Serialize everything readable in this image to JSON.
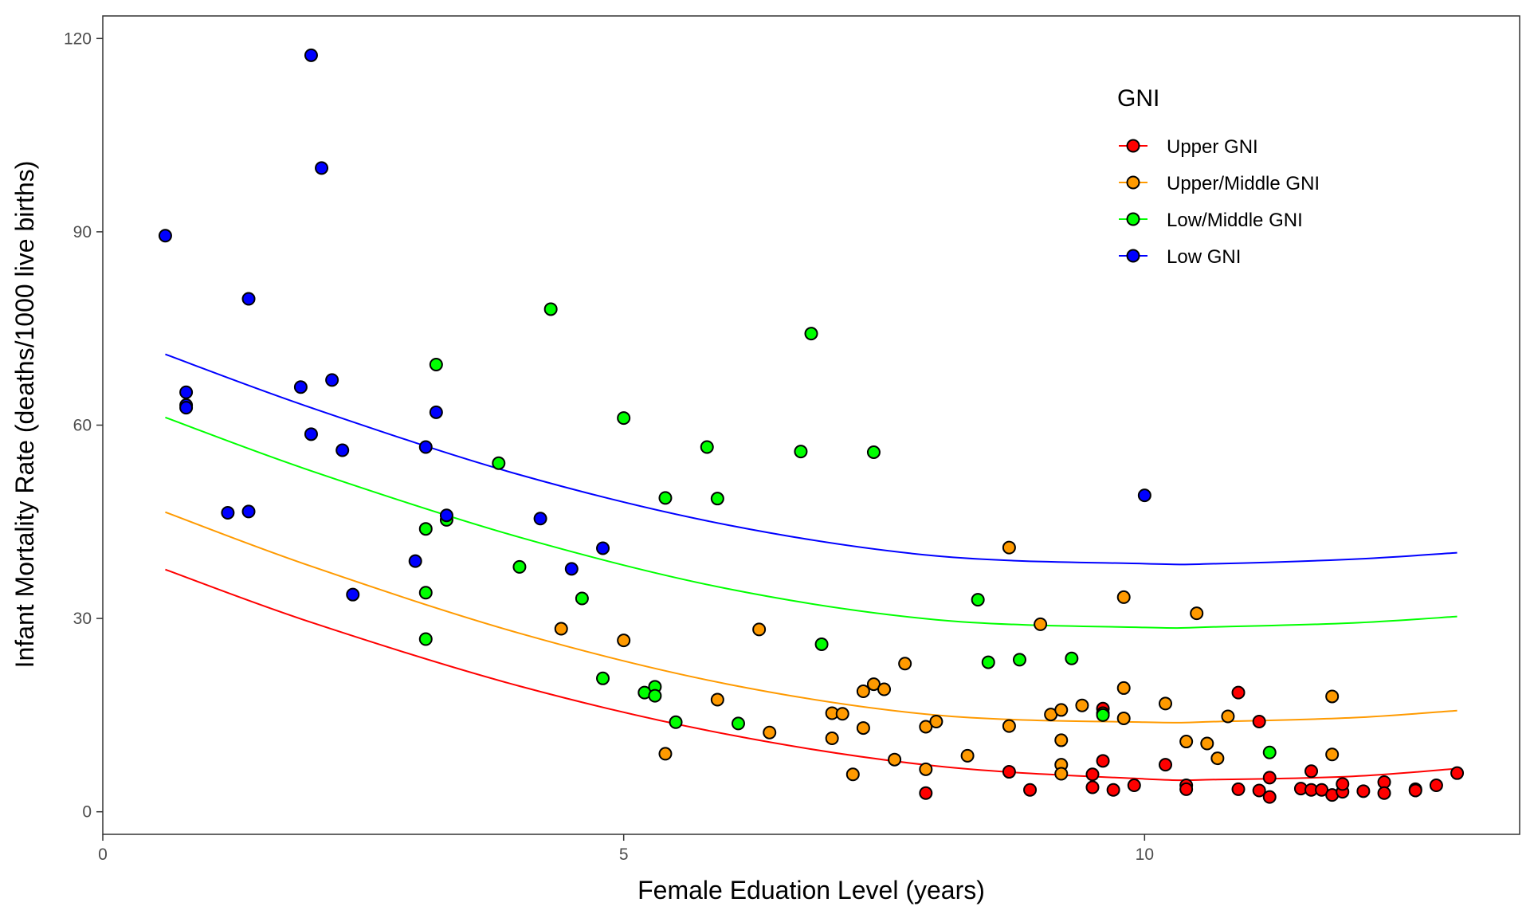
{
  "chart_data": {
    "type": "scatter",
    "xlabel": "Female Eduation Level (years)",
    "ylabel": "Infant Mortality Rate (deaths/1000 live births)",
    "xlim": [
      0,
      13.6
    ],
    "ylim": [
      -3.5,
      123.5
    ],
    "x_ticks": [
      0,
      5,
      10
    ],
    "y_ticks": [
      0,
      30,
      60,
      90,
      120
    ],
    "grid": false,
    "legend": {
      "title": "GNI",
      "placement": "top-right",
      "entries": [
        "Upper GNI",
        "Upper/Middle GNI",
        "Low/Middle GNI",
        "Low GNI"
      ]
    },
    "colors": {
      "Upper GNI": "#ff0000",
      "Upper/Middle GNI": "#ff9a00",
      "Low/Middle GNI": "#00ff00",
      "Low GNI": "#0000ff",
      "point_outline": "#000000"
    },
    "series": [
      {
        "name": "Upper GNI",
        "fit_curve": [
          [
            0.6,
            37.6
          ],
          [
            2.0,
            29.4
          ],
          [
            4.0,
            19.5
          ],
          [
            6.0,
            12.0
          ],
          [
            8.0,
            7.1
          ],
          [
            10.0,
            5.1
          ],
          [
            10.7,
            5.0
          ],
          [
            12.0,
            5.5
          ],
          [
            13.0,
            6.7
          ]
        ],
        "points": [
          [
            8.7,
            6.2
          ],
          [
            9.5,
            5.8
          ],
          [
            9.6,
            7.9
          ],
          [
            9.5,
            3.8
          ],
          [
            9.7,
            3.4
          ],
          [
            9.6,
            16.0
          ],
          [
            9.9,
            4.1
          ],
          [
            10.2,
            7.3
          ],
          [
            10.4,
            4.1
          ],
          [
            10.4,
            3.5
          ],
          [
            10.9,
            3.5
          ],
          [
            10.9,
            18.5
          ],
          [
            11.1,
            14.0
          ],
          [
            11.1,
            3.3
          ],
          [
            11.2,
            5.3
          ],
          [
            11.2,
            2.3
          ],
          [
            11.5,
            3.6
          ],
          [
            11.6,
            6.3
          ],
          [
            11.6,
            3.4
          ],
          [
            11.7,
            3.4
          ],
          [
            11.8,
            2.6
          ],
          [
            11.9,
            3.1
          ],
          [
            11.9,
            4.3
          ],
          [
            12.1,
            3.2
          ],
          [
            12.3,
            4.6
          ],
          [
            12.3,
            2.9
          ],
          [
            12.6,
            3.5
          ],
          [
            12.6,
            3.3
          ],
          [
            12.8,
            4.1
          ],
          [
            13.0,
            6.0
          ],
          [
            7.9,
            2.9
          ],
          [
            8.9,
            3.4
          ]
        ]
      },
      {
        "name": "Upper/Middle GNI",
        "fit_curve": [
          [
            0.6,
            46.5
          ],
          [
            2.0,
            38.1
          ],
          [
            4.0,
            27.7
          ],
          [
            6.0,
            19.8
          ],
          [
            8.0,
            15.0
          ],
          [
            10.0,
            13.9
          ],
          [
            10.7,
            14.0
          ],
          [
            12.0,
            14.6
          ],
          [
            13.0,
            15.7
          ]
        ],
        "points": [
          [
            4.4,
            28.4
          ],
          [
            5.0,
            26.6
          ],
          [
            5.4,
            9.0
          ],
          [
            5.9,
            17.4
          ],
          [
            6.3,
            28.3
          ],
          [
            6.4,
            12.3
          ],
          [
            7.0,
            15.3
          ],
          [
            7.0,
            11.4
          ],
          [
            7.1,
            15.2
          ],
          [
            7.2,
            5.8
          ],
          [
            7.3,
            18.7
          ],
          [
            7.3,
            13.0
          ],
          [
            7.4,
            19.8
          ],
          [
            7.5,
            19.0
          ],
          [
            7.6,
            8.1
          ],
          [
            7.7,
            23.0
          ],
          [
            7.9,
            6.6
          ],
          [
            7.9,
            13.2
          ],
          [
            8.0,
            14.0
          ],
          [
            8.3,
            8.7
          ],
          [
            8.7,
            13.3
          ],
          [
            8.7,
            41.0
          ],
          [
            9.0,
            29.1
          ],
          [
            9.1,
            15.1
          ],
          [
            9.2,
            15.8
          ],
          [
            9.2,
            11.1
          ],
          [
            9.2,
            7.3
          ],
          [
            9.2,
            5.9
          ],
          [
            9.4,
            16.5
          ],
          [
            9.6,
            15.3
          ],
          [
            9.8,
            14.5
          ],
          [
            9.8,
            19.2
          ],
          [
            9.8,
            33.3
          ],
          [
            10.2,
            16.8
          ],
          [
            10.4,
            10.9
          ],
          [
            10.5,
            30.8
          ],
          [
            10.6,
            10.6
          ],
          [
            10.7,
            8.3
          ],
          [
            10.8,
            14.8
          ],
          [
            11.8,
            17.9
          ],
          [
            11.8,
            8.9
          ]
        ]
      },
      {
        "name": "Low/Middle GNI",
        "fit_curve": [
          [
            0.6,
            61.2
          ],
          [
            2.0,
            52.9
          ],
          [
            4.0,
            42.6
          ],
          [
            6.0,
            34.6
          ],
          [
            8.0,
            29.8
          ],
          [
            10.0,
            28.6
          ],
          [
            10.7,
            28.7
          ],
          [
            12.0,
            29.3
          ],
          [
            13.0,
            30.3
          ]
        ],
        "points": [
          [
            3.2,
            69.4
          ],
          [
            3.1,
            43.9
          ],
          [
            3.3,
            45.3
          ],
          [
            3.1,
            34.0
          ],
          [
            3.1,
            26.8
          ],
          [
            3.8,
            54.1
          ],
          [
            4.0,
            38.0
          ],
          [
            4.3,
            78.0
          ],
          [
            4.6,
            33.1
          ],
          [
            4.8,
            20.7
          ],
          [
            5.0,
            61.1
          ],
          [
            5.2,
            18.5
          ],
          [
            5.3,
            19.4
          ],
          [
            5.3,
            18.0
          ],
          [
            5.4,
            48.7
          ],
          [
            5.5,
            13.9
          ],
          [
            5.8,
            56.6
          ],
          [
            5.9,
            48.6
          ],
          [
            6.1,
            13.7
          ],
          [
            6.7,
            55.9
          ],
          [
            6.8,
            74.2
          ],
          [
            6.9,
            26.0
          ],
          [
            7.4,
            55.8
          ],
          [
            8.4,
            32.9
          ],
          [
            8.5,
            23.2
          ],
          [
            8.8,
            23.6
          ],
          [
            9.3,
            23.8
          ],
          [
            9.6,
            15.0
          ],
          [
            11.2,
            9.2
          ]
        ]
      },
      {
        "name": "Low GNI",
        "fit_curve": [
          [
            0.6,
            71.0
          ],
          [
            2.0,
            62.7
          ],
          [
            4.0,
            52.3
          ],
          [
            6.0,
            44.5
          ],
          [
            8.0,
            39.7
          ],
          [
            10.0,
            38.5
          ],
          [
            10.7,
            38.5
          ],
          [
            12.0,
            39.2
          ],
          [
            13.0,
            40.2
          ]
        ],
        "points": [
          [
            0.6,
            89.4
          ],
          [
            0.8,
            65.1
          ],
          [
            0.8,
            63.1
          ],
          [
            0.8,
            62.7
          ],
          [
            1.2,
            46.4
          ],
          [
            1.4,
            79.6
          ],
          [
            1.4,
            46.6
          ],
          [
            1.9,
            65.9
          ],
          [
            2.0,
            58.6
          ],
          [
            2.0,
            117.4
          ],
          [
            2.1,
            99.9
          ],
          [
            2.2,
            67.0
          ],
          [
            2.3,
            56.1
          ],
          [
            2.4,
            33.7
          ],
          [
            3.0,
            38.9
          ],
          [
            3.1,
            56.6
          ],
          [
            3.2,
            62.0
          ],
          [
            3.3,
            46.0
          ],
          [
            4.2,
            45.5
          ],
          [
            4.5,
            37.7
          ],
          [
            4.8,
            40.9
          ],
          [
            10.0,
            49.1
          ]
        ]
      }
    ]
  }
}
